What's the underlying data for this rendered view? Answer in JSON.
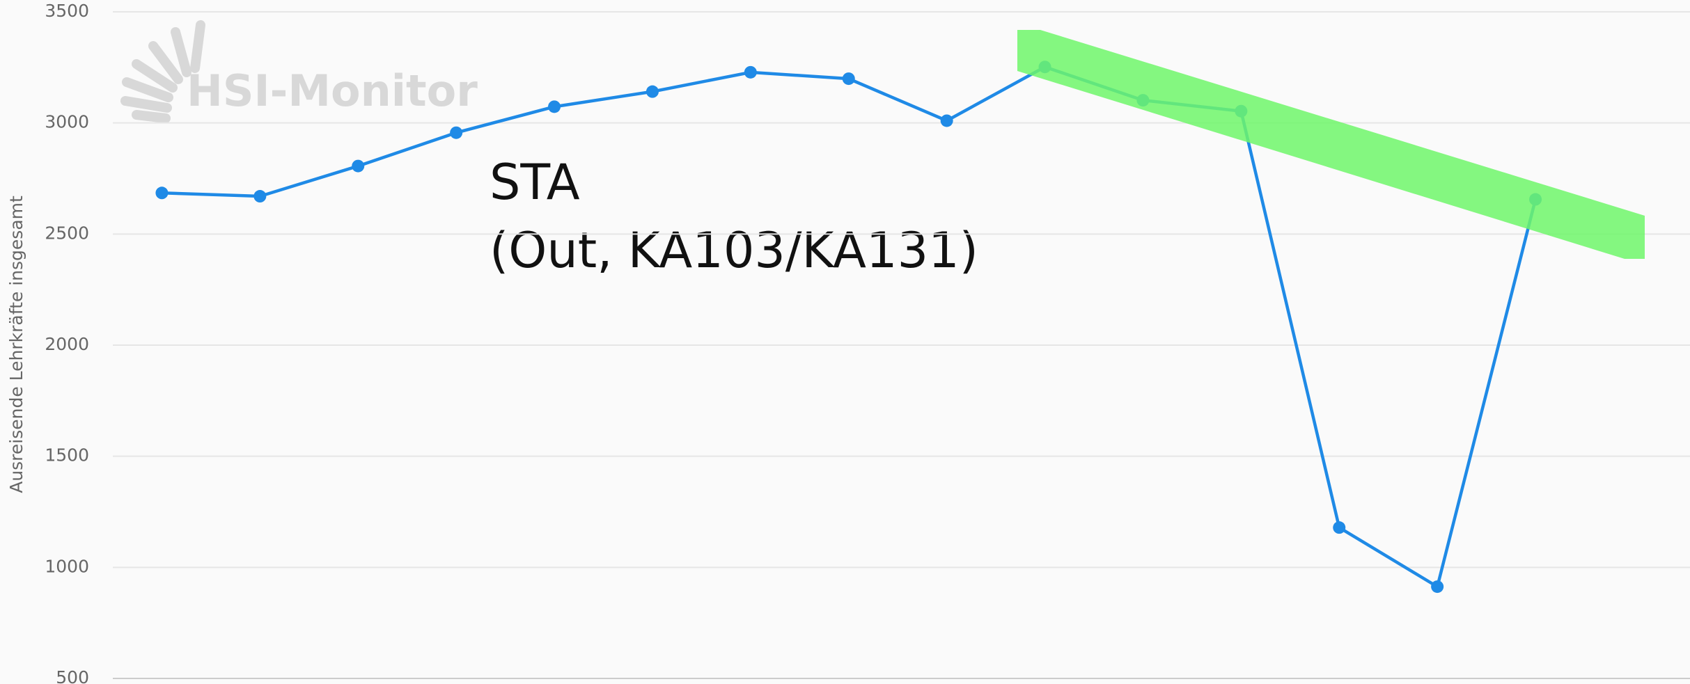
{
  "chart_data": {
    "type": "line",
    "y_label": "Ausreisende Lehrkräfte insgesamt",
    "watermark": "HSI-Monitor",
    "annotations": [
      "STA",
      "(Out, KA103/KA131)"
    ],
    "categories": [
      null,
      null,
      null,
      null,
      null,
      null,
      null,
      null,
      null,
      null,
      null,
      null,
      null,
      null,
      null
    ],
    "series": [
      {
        "name": null,
        "color": "#1f8ae6",
        "values": [
          2685,
          2670,
          2806,
          2956,
          3073,
          3141,
          3228,
          3199,
          3010,
          3252,
          3102,
          3053,
          1179,
          913,
          2656
        ]
      }
    ],
    "ylim": [
      500,
      3500
    ],
    "yticks": [
      500,
      1000,
      1500,
      2000,
      2500,
      3000,
      3500
    ],
    "grid": true
  }
}
